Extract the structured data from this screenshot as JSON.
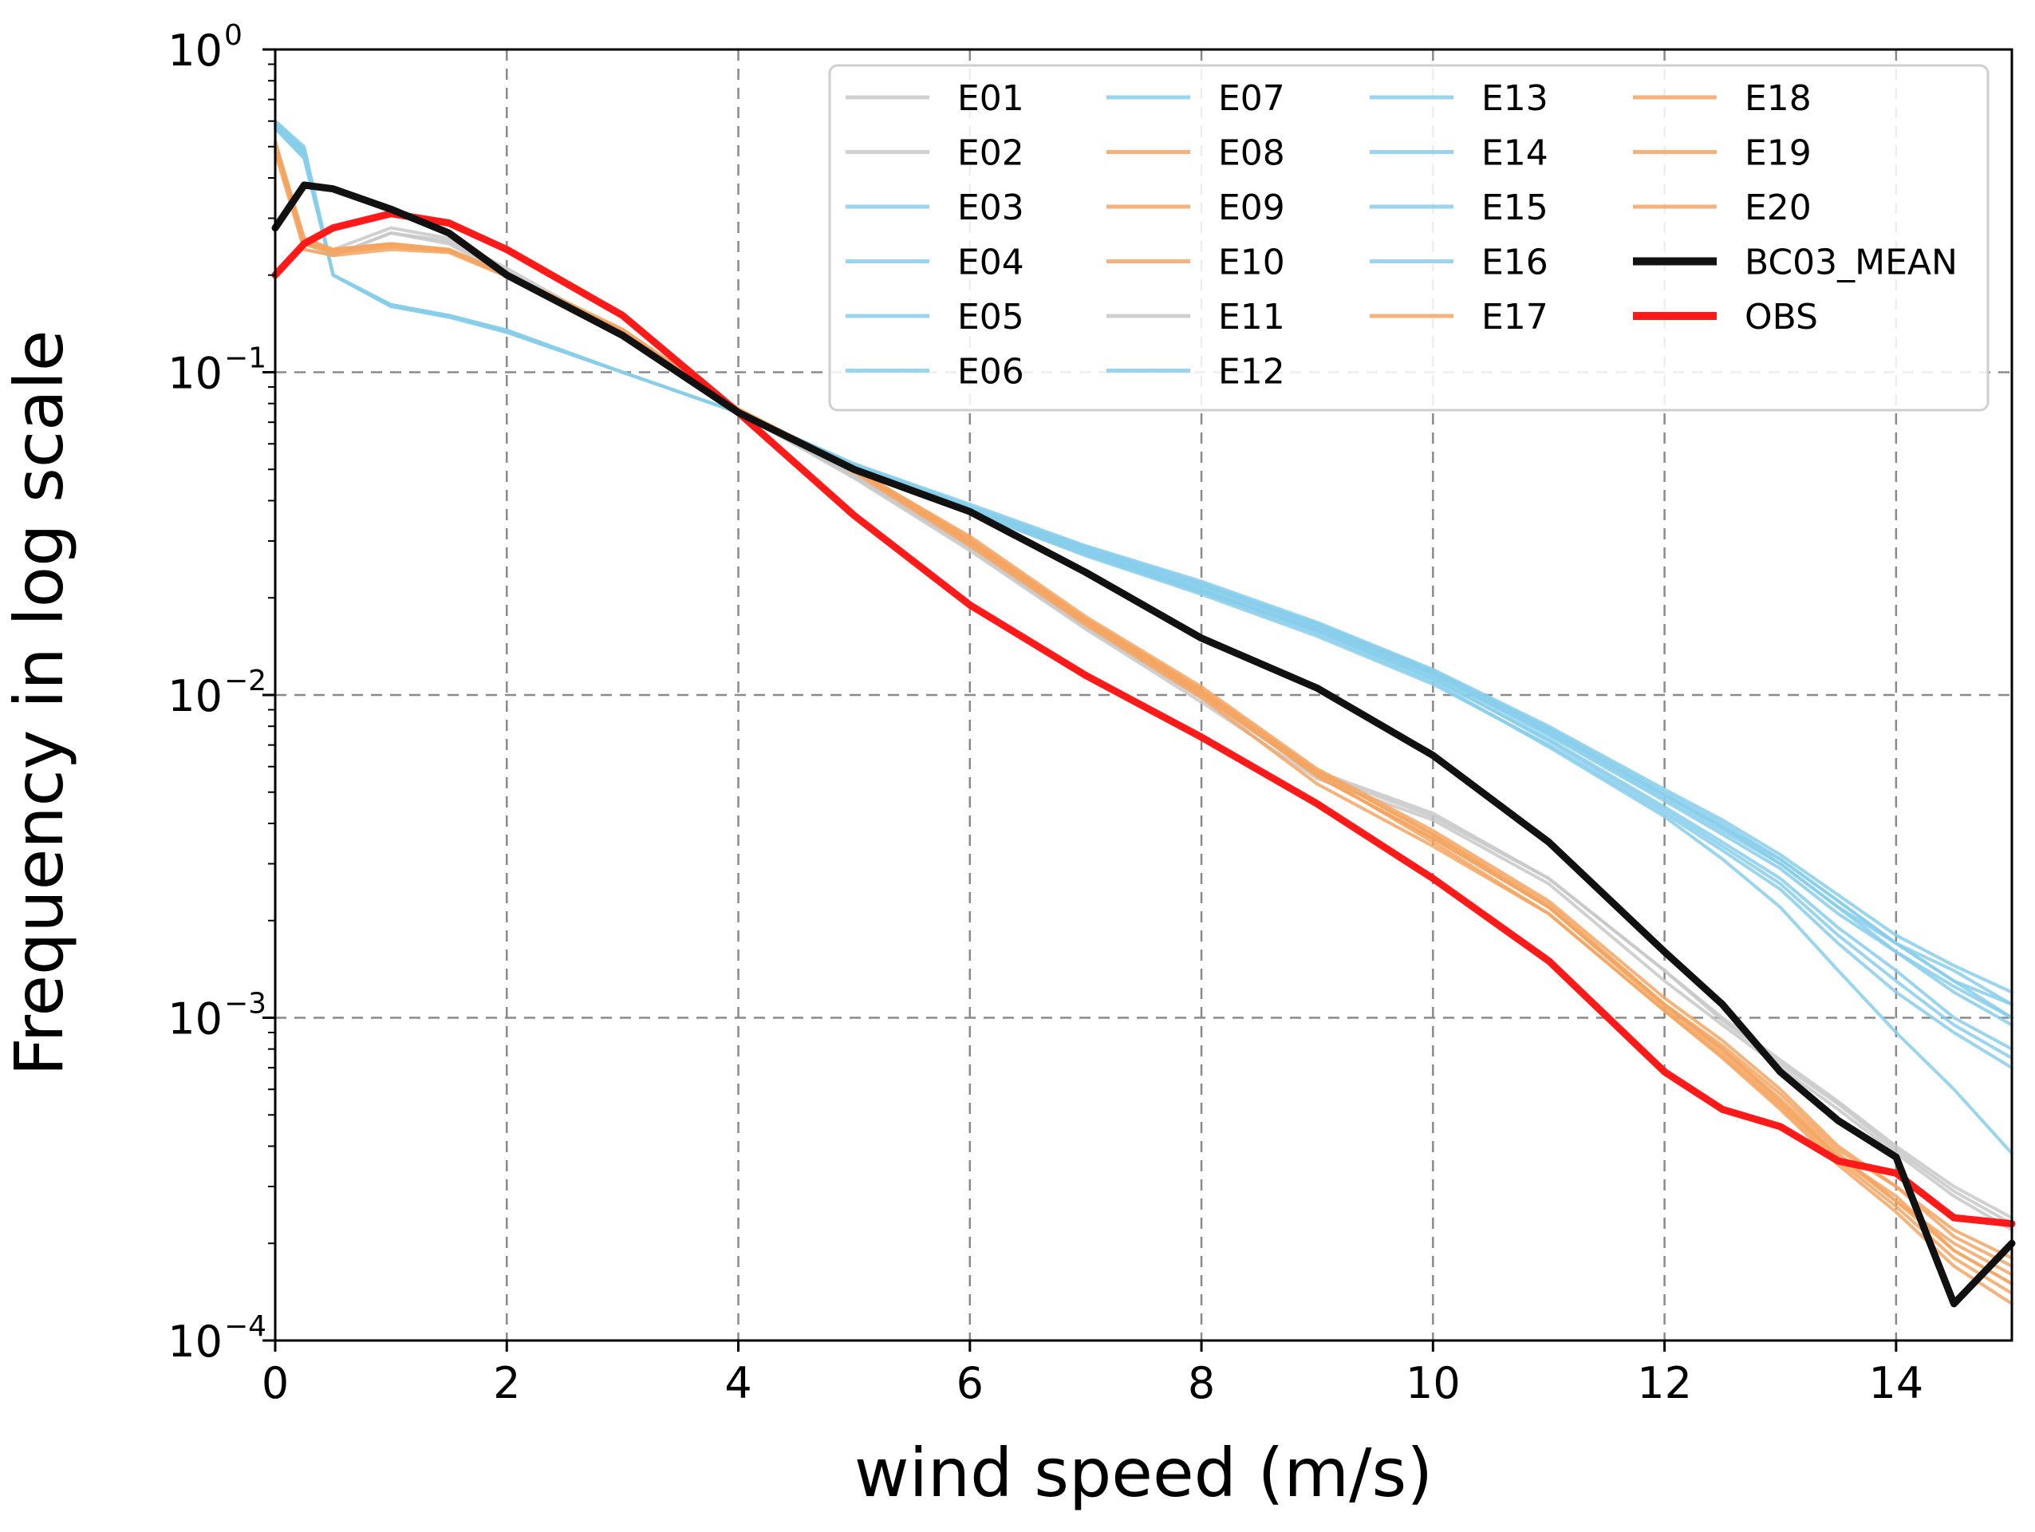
{
  "chart_data": {
    "type": "line",
    "title": "",
    "xlabel": "wind speed (m/s)",
    "ylabel": "Frequency in log scale",
    "xlim": [
      0,
      15
    ],
    "ylim": [
      0.0001,
      1
    ],
    "yscale": "log",
    "grid": true,
    "legend_position": "top-right",
    "legend_columns": 4,
    "x_ticks": [
      {
        "value": 0,
        "label": "0"
      },
      {
        "value": 2,
        "label": "2"
      },
      {
        "value": 4,
        "label": "4"
      },
      {
        "value": 6,
        "label": "6"
      },
      {
        "value": 8,
        "label": "8"
      },
      {
        "value": 10,
        "label": "10"
      },
      {
        "value": 12,
        "label": "12"
      },
      {
        "value": 14,
        "label": "14"
      }
    ],
    "y_ticks": [
      {
        "value": 1,
        "base": "10",
        "exp": "0"
      },
      {
        "value": 0.1,
        "base": "10",
        "exp": "−1"
      },
      {
        "value": 0.01,
        "base": "10",
        "exp": "−2"
      },
      {
        "value": 0.001,
        "base": "10",
        "exp": "−3"
      },
      {
        "value": 0.0001,
        "base": "10",
        "exp": "−4"
      }
    ],
    "group_colors": {
      "gray": "#c8c8c8",
      "blue": "#87ceeb",
      "orange": "#f4a460",
      "mean": "#111111",
      "obs": "#ff1a1a"
    },
    "x": [
      0,
      0.25,
      0.5,
      1,
      1.5,
      2,
      3,
      4,
      5,
      6,
      7,
      8,
      9,
      10,
      11,
      12,
      12.5,
      13,
      13.5,
      14,
      14.5,
      15
    ],
    "series": [
      {
        "name": "E01",
        "group": "gray",
        "values": [
          0.52,
          0.24,
          0.23,
          0.27,
          0.25,
          0.2,
          0.13,
          0.075,
          0.047,
          0.028,
          0.016,
          0.0095,
          0.0055,
          0.0041,
          0.0026,
          0.0013,
          0.00095,
          0.0007,
          0.00052,
          0.00038,
          0.00028,
          0.00022
        ]
      },
      {
        "name": "E02",
        "group": "gray",
        "values": [
          0.5,
          0.25,
          0.24,
          0.28,
          0.26,
          0.21,
          0.132,
          0.076,
          0.048,
          0.029,
          0.0165,
          0.01,
          0.0058,
          0.0043,
          0.0027,
          0.0014,
          0.001,
          0.00074,
          0.00055,
          0.0004,
          0.0003,
          0.00024
        ]
      },
      {
        "name": "E03",
        "group": "blue",
        "values": [
          0.6,
          0.5,
          0.2,
          0.16,
          0.15,
          0.135,
          0.1,
          0.075,
          0.052,
          0.038,
          0.028,
          0.021,
          0.016,
          0.0115,
          0.0075,
          0.0047,
          0.0037,
          0.0029,
          0.0021,
          0.0016,
          0.0012,
          0.00095
        ]
      },
      {
        "name": "E04",
        "group": "blue",
        "values": [
          0.58,
          0.47,
          0.2,
          0.16,
          0.148,
          0.133,
          0.1,
          0.075,
          0.052,
          0.038,
          0.0285,
          0.022,
          0.0165,
          0.0118,
          0.0078,
          0.0049,
          0.0039,
          0.0031,
          0.0023,
          0.0017,
          0.0013,
          0.0011
        ]
      },
      {
        "name": "E05",
        "group": "blue",
        "values": [
          0.59,
          0.48,
          0.2,
          0.162,
          0.15,
          0.134,
          0.1,
          0.075,
          0.051,
          0.037,
          0.0275,
          0.021,
          0.0158,
          0.0112,
          0.0073,
          0.0045,
          0.0035,
          0.0027,
          0.0019,
          0.0014,
          0.001,
          0.0008
        ]
      },
      {
        "name": "E06",
        "group": "blue",
        "values": [
          0.57,
          0.46,
          0.2,
          0.16,
          0.149,
          0.133,
          0.1,
          0.075,
          0.052,
          0.039,
          0.029,
          0.0225,
          0.0168,
          0.012,
          0.008,
          0.0051,
          0.0041,
          0.0032,
          0.0024,
          0.0018,
          0.00145,
          0.0012
        ]
      },
      {
        "name": "E07",
        "group": "blue",
        "values": [
          0.6,
          0.49,
          0.2,
          0.161,
          0.15,
          0.134,
          0.1,
          0.075,
          0.051,
          0.037,
          0.027,
          0.0205,
          0.0152,
          0.0108,
          0.007,
          0.0043,
          0.0033,
          0.0025,
          0.0017,
          0.0012,
          0.0009,
          0.0007
        ]
      },
      {
        "name": "E08",
        "group": "orange",
        "values": [
          0.5,
          0.25,
          0.24,
          0.25,
          0.24,
          0.2,
          0.135,
          0.077,
          0.05,
          0.03,
          0.017,
          0.0102,
          0.0056,
          0.0036,
          0.0022,
          0.0011,
          0.0008,
          0.00055,
          0.00037,
          0.00028,
          0.00019,
          0.00015
        ]
      },
      {
        "name": "E09",
        "group": "orange",
        "values": [
          0.48,
          0.24,
          0.23,
          0.24,
          0.235,
          0.198,
          0.134,
          0.076,
          0.049,
          0.029,
          0.0165,
          0.0098,
          0.0053,
          0.0034,
          0.0021,
          0.00105,
          0.00075,
          0.00052,
          0.00035,
          0.00025,
          0.00017,
          0.00013
        ]
      },
      {
        "name": "E10",
        "group": "orange",
        "values": [
          0.51,
          0.26,
          0.24,
          0.25,
          0.24,
          0.202,
          0.136,
          0.077,
          0.05,
          0.031,
          0.0175,
          0.0106,
          0.0059,
          0.0038,
          0.0023,
          0.00115,
          0.00085,
          0.0006,
          0.0004,
          0.0003,
          0.00021,
          0.00017
        ]
      },
      {
        "name": "E11",
        "group": "gray",
        "values": [
          0.51,
          0.25,
          0.23,
          0.27,
          0.255,
          0.205,
          0.131,
          0.075,
          0.0475,
          0.0285,
          0.0162,
          0.0098,
          0.0057,
          0.0042,
          0.0027,
          0.0014,
          0.00098,
          0.00072,
          0.00054,
          0.00039,
          0.00029,
          0.00023
        ]
      },
      {
        "name": "E12",
        "group": "blue",
        "values": [
          0.59,
          0.48,
          0.2,
          0.16,
          0.15,
          0.134,
          0.1,
          0.075,
          0.052,
          0.038,
          0.028,
          0.0215,
          0.0162,
          0.0116,
          0.0076,
          0.0048,
          0.0038,
          0.003,
          0.0022,
          0.0016,
          0.00125,
          0.001
        ]
      },
      {
        "name": "E13",
        "group": "blue",
        "values": [
          0.58,
          0.47,
          0.2,
          0.16,
          0.149,
          0.134,
          0.1,
          0.075,
          0.0515,
          0.0375,
          0.0278,
          0.0212,
          0.0158,
          0.0113,
          0.0072,
          0.0044,
          0.0034,
          0.0026,
          0.0018,
          0.0013,
          0.00095,
          0.00075
        ]
      },
      {
        "name": "E14",
        "group": "blue",
        "values": [
          0.6,
          0.49,
          0.2,
          0.162,
          0.15,
          0.135,
          0.1,
          0.075,
          0.052,
          0.0385,
          0.0288,
          0.0222,
          0.0166,
          0.0119,
          0.0079,
          0.005,
          0.004,
          0.0031,
          0.0023,
          0.0017,
          0.0014,
          0.0011
        ]
      },
      {
        "name": "E15",
        "group": "blue",
        "values": [
          0.57,
          0.46,
          0.2,
          0.16,
          0.149,
          0.133,
          0.1,
          0.075,
          0.051,
          0.037,
          0.0272,
          0.0208,
          0.0155,
          0.011,
          0.0069,
          0.0042,
          0.0031,
          0.0022,
          0.0014,
          0.0009,
          0.0006,
          0.00038
        ]
      },
      {
        "name": "E16",
        "group": "blue",
        "values": [
          0.59,
          0.48,
          0.2,
          0.161,
          0.15,
          0.134,
          0.1,
          0.075,
          0.052,
          0.038,
          0.0282,
          0.0218,
          0.0163,
          0.0117,
          0.0077,
          0.0049,
          0.0039,
          0.003,
          0.0022,
          0.0017,
          0.0013,
          0.001
        ]
      },
      {
        "name": "E17",
        "group": "orange",
        "values": [
          0.49,
          0.25,
          0.235,
          0.245,
          0.238,
          0.2,
          0.135,
          0.077,
          0.0505,
          0.0305,
          0.0172,
          0.0104,
          0.0058,
          0.0037,
          0.00225,
          0.0011,
          0.0008,
          0.00056,
          0.00038,
          0.00027,
          0.0002,
          0.00016
        ]
      },
      {
        "name": "E18",
        "group": "orange",
        "values": [
          0.5,
          0.25,
          0.24,
          0.25,
          0.24,
          0.2,
          0.134,
          0.076,
          0.0495,
          0.0295,
          0.0168,
          0.01,
          0.0057,
          0.0035,
          0.0021,
          0.00105,
          0.00076,
          0.00053,
          0.00036,
          0.00026,
          0.00018,
          0.00014
        ]
      },
      {
        "name": "E19",
        "group": "orange",
        "values": [
          0.52,
          0.26,
          0.24,
          0.25,
          0.24,
          0.201,
          0.135,
          0.077,
          0.05,
          0.03,
          0.0172,
          0.0103,
          0.0058,
          0.0037,
          0.0022,
          0.0011,
          0.00082,
          0.00058,
          0.00039,
          0.0003,
          0.00022,
          0.00018
        ]
      },
      {
        "name": "E20",
        "group": "orange",
        "values": [
          0.5,
          0.25,
          0.235,
          0.245,
          0.237,
          0.199,
          0.134,
          0.076,
          0.0495,
          0.0298,
          0.0169,
          0.0101,
          0.0056,
          0.0036,
          0.0022,
          0.00108,
          0.00078,
          0.00054,
          0.00037,
          0.00027,
          0.00019,
          0.00015
        ]
      },
      {
        "name": "BC03_MEAN",
        "group": "mean",
        "values": [
          0.28,
          0.38,
          0.37,
          0.32,
          0.27,
          0.2,
          0.13,
          0.075,
          0.05,
          0.037,
          0.024,
          0.015,
          0.0105,
          0.0065,
          0.0035,
          0.0016,
          0.0011,
          0.00068,
          0.00048,
          0.00037,
          0.00013,
          0.0002
        ]
      },
      {
        "name": "OBS",
        "group": "obs",
        "values": [
          0.2,
          0.25,
          0.28,
          0.31,
          0.29,
          0.24,
          0.15,
          0.075,
          0.036,
          0.019,
          0.0115,
          0.0074,
          0.0046,
          0.0027,
          0.0015,
          0.00068,
          0.00052,
          0.00046,
          0.00036,
          0.00033,
          0.00024,
          0.00023
        ]
      }
    ]
  }
}
